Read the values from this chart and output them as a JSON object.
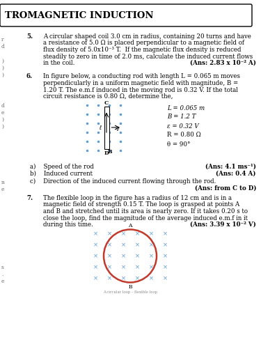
{
  "title": "TROMAGNETIC INDUCTION",
  "bg_color": "#ffffff",
  "q5_num": "5.",
  "q5_lines": [
    "A circular shaped coil 3.0 cm in radius, containing 20 turns and have",
    "a resistance of 5.0 Ω is placed perpendicular to a magnetic field of",
    "flux density of 5.0x10⁻³ T.  If the magnetic flux density is reduced",
    "steadily to zero in time of 2.0 ms, calculate the induced current flows",
    "in the coil."
  ],
  "q5_ans": "(Ans: 2.83 x 10⁻² A)",
  "q6_num": "6.",
  "q6_lines": [
    "In figure below, a conducting rod with length L = 0.065 m moves",
    "perpendicularly in a uniform magnetic field with magnitude, B =",
    "1.20 T. The e.m.f induced in the moving rod is 0.32 V. If the total",
    "circuit resistance is 0.80 Ω, determine the,"
  ],
  "q6_params": [
    "L = 0.065 m",
    "B = 1.2 T",
    "ε = 0.32 V",
    "R = 0.80 Ω",
    "θ = 90°"
  ],
  "q6a_text": "a)    Speed of the rod",
  "q6a_ans": "(Ans: 4.1 ms⁻¹)",
  "q6b_text": "b)    Induced current",
  "q6b_ans": "(Ans: 0.4 A)",
  "q6c_text": "c)    Direction of the induced current flowing through the rod.",
  "q6c_ans": "(Ans: from C to D)",
  "q7_num": "7.",
  "q7_lines": [
    "The flexible loop in the figure has a radius of 12 cm and is in a",
    "magnetic field of strength 0.15 T. The loop is grasped at points A",
    "and B and stretched until its area is nearly zero. If it takes 0.20 s to",
    "close the loop, find the magnitude of the average induced e.m.f in it",
    "during this time."
  ],
  "q7_ans": "(Ans: 3.39 x 10⁻² V)",
  "dot_color": "#5b9bd5",
  "loop_color": "#c0392b",
  "left_margin_chars": [
    [
      "r",
      57
    ],
    [
      "d",
      67
    ],
    [
      " ",
      78
    ],
    [
      ")",
      88
    ],
    [
      ")",
      98
    ],
    [
      ")",
      108
    ],
    [
      "d",
      152
    ],
    [
      "e",
      162
    ],
    [
      ")",
      172
    ],
    [
      ")",
      182
    ],
    [
      "n",
      262
    ],
    [
      "e",
      272
    ],
    [
      "s",
      384
    ],
    [
      ".",
      394
    ],
    [
      "e",
      404
    ]
  ]
}
